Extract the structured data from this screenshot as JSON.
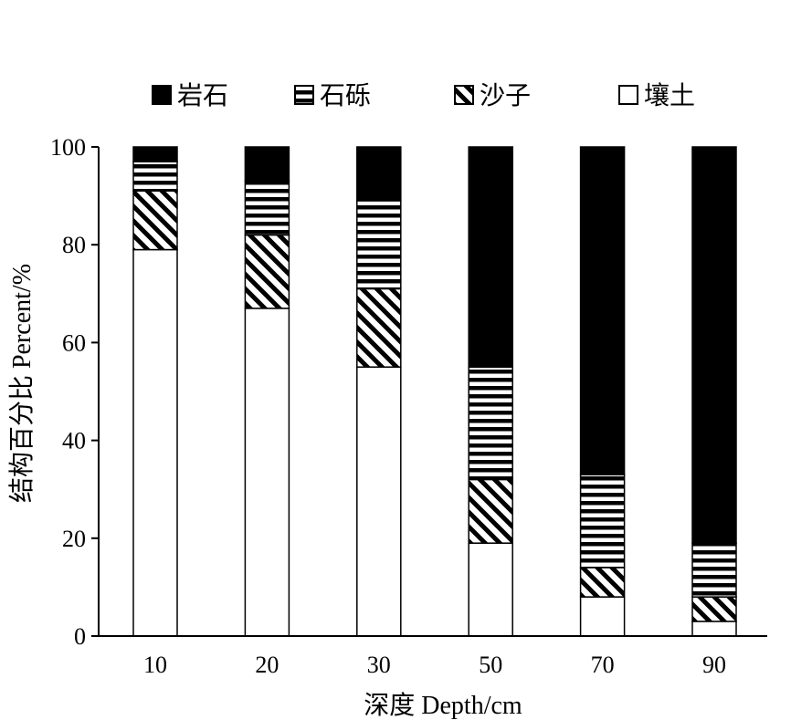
{
  "chart_data": {
    "type": "bar",
    "stacked": true,
    "categories": [
      "10",
      "20",
      "30",
      "50",
      "70",
      "90"
    ],
    "series": [
      {
        "name": "壤土",
        "values": [
          79,
          67,
          55,
          19,
          8,
          3
        ],
        "fill": "none"
      },
      {
        "name": "沙子",
        "values": [
          12,
          15,
          16,
          13,
          6,
          5
        ],
        "fill": "diagonal"
      },
      {
        "name": "石砾",
        "values": [
          6,
          11,
          18,
          23,
          19,
          11
        ],
        "fill": "horizontal"
      },
      {
        "name": "岩石",
        "values": [
          3,
          7,
          11,
          45,
          67,
          81
        ],
        "fill": "solid"
      }
    ],
    "legend_order": [
      3,
      2,
      1,
      0
    ],
    "xlabel": "深度 Depth/cm",
    "ylabel": "结构百分比 Percent/%",
    "ylim": [
      0,
      100
    ],
    "yticks": [
      "0",
      "20",
      "40",
      "60",
      "80",
      "100"
    ],
    "grid": false,
    "legend_position": "top"
  },
  "colors": {
    "ink": "#000000",
    "background": "#ffffff"
  }
}
